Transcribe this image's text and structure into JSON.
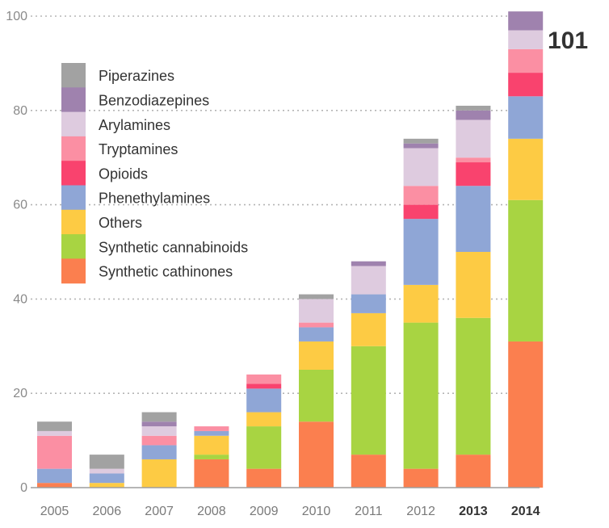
{
  "chart_data": {
    "type": "bar",
    "stacked": true,
    "title": "",
    "xlabel": "",
    "ylabel": "",
    "ylim": [
      0,
      100
    ],
    "yticks": [
      "0",
      "20",
      "40",
      "60",
      "80",
      "100"
    ],
    "grid": true,
    "legend_position": "top-left",
    "categories": [
      "2005",
      "2006",
      "2007",
      "2008",
      "2009",
      "2010",
      "2011",
      "2012",
      "2013",
      "2014"
    ],
    "bold_categories": [
      "2013",
      "2014"
    ],
    "series": [
      {
        "name": "Synthetic cathinones",
        "color": "#fb7f4f",
        "values": [
          1,
          0,
          0,
          6,
          4,
          14,
          7,
          4,
          7,
          31
        ]
      },
      {
        "name": "Synthetic cannabinoids",
        "color": "#a8d442",
        "values": [
          0,
          0,
          0,
          1,
          9,
          11,
          23,
          31,
          29,
          30
        ]
      },
      {
        "name": "Others",
        "color": "#fdcb44",
        "values": [
          0,
          1,
          6,
          4,
          3,
          6,
          7,
          8,
          14,
          13
        ]
      },
      {
        "name": "Phenethylamines",
        "color": "#8fa6d6",
        "values": [
          3,
          2,
          3,
          1,
          5,
          3,
          4,
          14,
          14,
          9
        ]
      },
      {
        "name": "Opioids",
        "color": "#f9436e",
        "values": [
          0,
          0,
          0,
          0,
          1,
          0,
          0,
          3,
          5,
          5
        ]
      },
      {
        "name": "Tryptamines",
        "color": "#fb8fa3",
        "values": [
          7,
          0,
          2,
          1,
          2,
          1,
          0,
          4,
          1,
          5
        ]
      },
      {
        "name": "Arylamines",
        "color": "#decbdf",
        "values": [
          1,
          1,
          2,
          0,
          0,
          5,
          6,
          8,
          8,
          4
        ]
      },
      {
        "name": "Benzodiazepines",
        "color": "#9f82ae",
        "values": [
          0,
          0,
          1,
          0,
          0,
          0,
          1,
          1,
          2,
          4
        ]
      },
      {
        "name": "Piperazines",
        "color": "#a2a2a2",
        "values": [
          2,
          3,
          2,
          0,
          0,
          1,
          0,
          1,
          1,
          0
        ]
      }
    ],
    "annotation": "101"
  }
}
